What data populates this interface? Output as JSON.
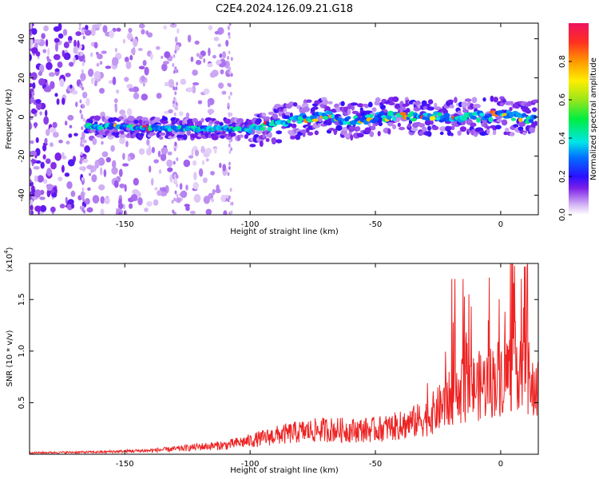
{
  "title": "C2E4.2024.126.09.21.G18",
  "colors": {
    "snr_line": "#ee2222",
    "axis": "#000000",
    "background": "#ffffff"
  },
  "chart_data": [
    {
      "type": "heatmap",
      "xlabel": "Height of straight line (km)",
      "ylabel": "Frequency (Hz)",
      "xlim": [
        -188,
        15
      ],
      "ylim": [
        -50,
        48
      ],
      "xticks": [
        -150,
        -100,
        -50,
        0
      ],
      "yticks": [
        -40,
        -20,
        0,
        20,
        40
      ],
      "ridge": {
        "description_x": [
          -165,
          -150,
          -130,
          -110,
          -100,
          -90,
          -80,
          -70,
          -60,
          -50,
          -40,
          -30,
          -20,
          -10,
          0,
          10,
          14
        ],
        "frequency_hz": [
          -5,
          -5,
          -6,
          -6,
          -6,
          -4,
          -1,
          1,
          -2,
          0,
          1,
          0,
          0,
          0,
          1,
          -1,
          0
        ]
      },
      "colorbar": {
        "label": "Normalized spectral amplitude",
        "range": [
          0,
          1
        ],
        "ticks": [
          "0.0",
          "0.2",
          "0.4",
          "0.6",
          "0.8"
        ],
        "tick_values": [
          0,
          0.2,
          0.4,
          0.6,
          0.8
        ]
      }
    },
    {
      "type": "line",
      "xlabel": "Height of straight line (km)",
      "ylabel": "SNR (10 * v/v)",
      "scale_label": "(x10^4)",
      "xlim": [
        -188,
        15
      ],
      "ylim": [
        0,
        1.85
      ],
      "xticks": [
        -150,
        -100,
        -50,
        0
      ],
      "yticks": [
        "0.5",
        "1.0",
        "1.5"
      ],
      "ytick_values": [
        0.5,
        1.0,
        1.5
      ],
      "envelope": {
        "x": [
          -188,
          -160,
          -140,
          -130,
          -120,
          -110,
          -100,
          -90,
          -80,
          -70,
          -60,
          -50,
          -40,
          -30,
          -25,
          -20,
          -15,
          -10,
          -5,
          0,
          5,
          8,
          10,
          12,
          14
        ],
        "y": [
          0.02,
          0.03,
          0.05,
          0.07,
          0.1,
          0.12,
          0.18,
          0.25,
          0.3,
          0.33,
          0.32,
          0.33,
          0.38,
          0.48,
          0.6,
          0.75,
          0.85,
          0.9,
          0.95,
          1.05,
          1.15,
          1.25,
          1.35,
          0.8,
          0.9
        ]
      }
    }
  ]
}
